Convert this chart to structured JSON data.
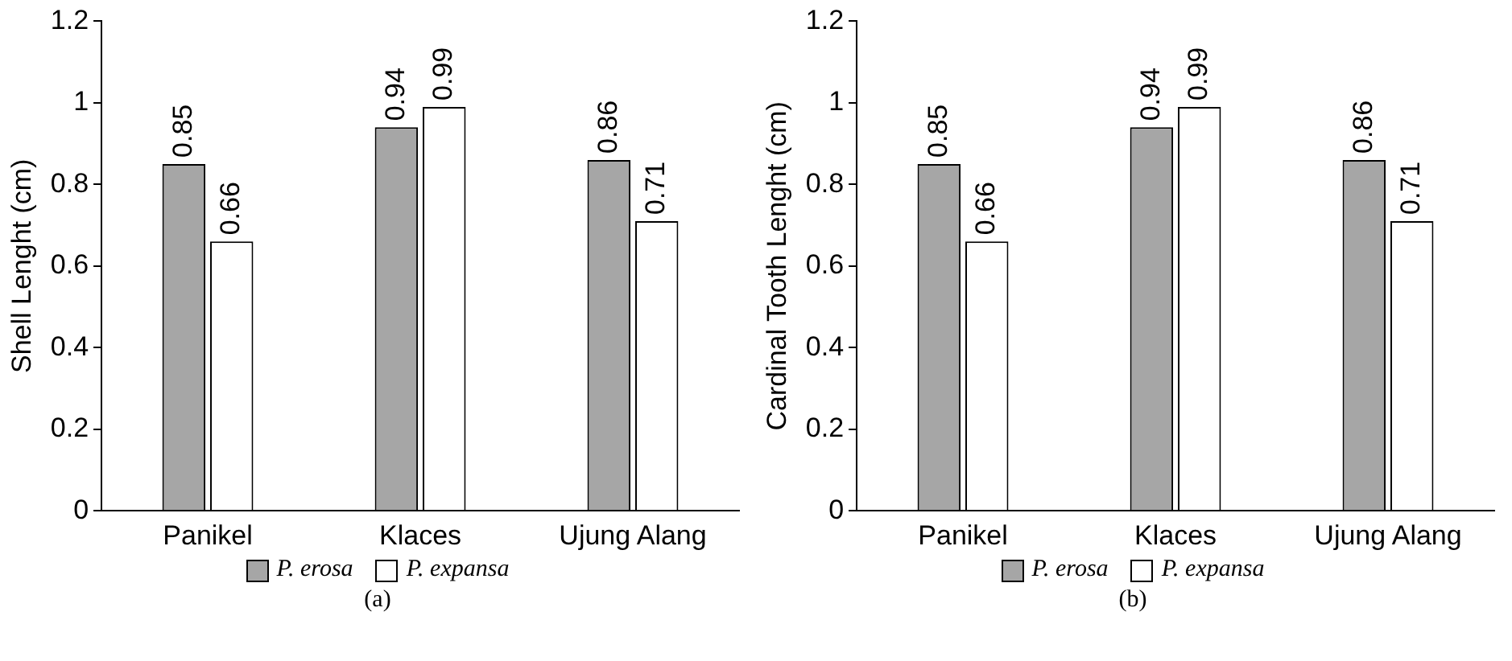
{
  "chart_data": [
    {
      "type": "bar",
      "ylabel": "Shell Lenght (cm)",
      "categories": [
        "Panikel",
        "Klaces",
        "Ujung Alang"
      ],
      "series": [
        {
          "name": "P. erosa",
          "color": "#a6a6a6",
          "values": [
            0.85,
            0.94,
            0.86
          ]
        },
        {
          "name": "P. expansa",
          "color": "#ffffff",
          "values": [
            0.66,
            0.99,
            0.71
          ]
        }
      ],
      "ylim": [
        0,
        1.2
      ],
      "yticks": [
        0,
        0.2,
        0.4,
        0.6,
        0.8,
        1,
        1.2
      ],
      "grid": false,
      "legend": "bottom",
      "data_labels": true,
      "annotations": [
        "(a)"
      ]
    },
    {
      "type": "bar",
      "ylabel": "Cardinal Tooth Lenght (cm)",
      "categories": [
        "Panikel",
        "Klaces",
        "Ujung Alang"
      ],
      "series": [
        {
          "name": "P. erosa",
          "color": "#a6a6a6",
          "values": [
            0.85,
            0.94,
            0.86
          ]
        },
        {
          "name": "P. expansa",
          "color": "#ffffff",
          "values": [
            0.66,
            0.99,
            0.71
          ]
        }
      ],
      "ylim": [
        0,
        1.2
      ],
      "yticks": [
        0,
        0.2,
        0.4,
        0.6,
        0.8,
        1,
        1.2
      ],
      "grid": false,
      "legend": "bottom",
      "data_labels": true,
      "annotations": [
        "(b)"
      ]
    }
  ]
}
